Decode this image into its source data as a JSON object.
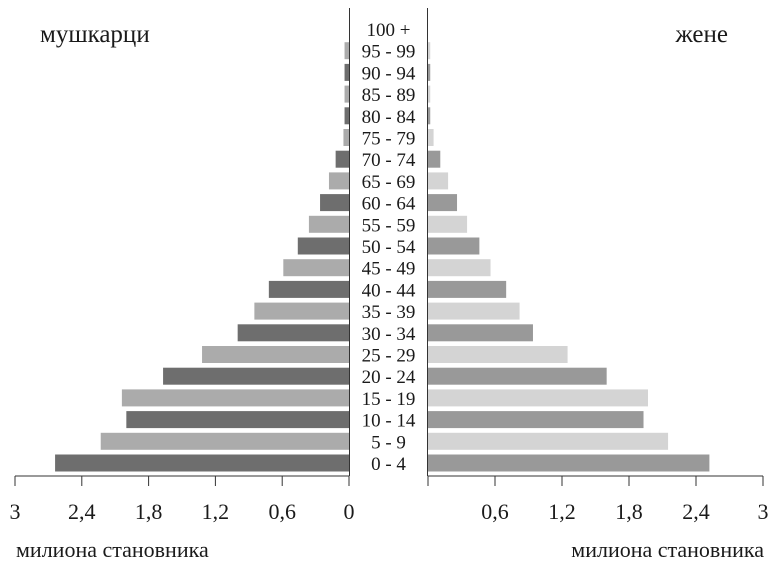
{
  "chart_data": {
    "type": "bar",
    "orientation": "horizontal-population-pyramid",
    "left_label": "мушкарци",
    "right_label": "жене",
    "xlabel_left": "милиона становника",
    "xlabel_right": "милиона становника",
    "xlim": [
      0,
      3
    ],
    "left_ticks": [
      "3",
      "2,4",
      "1,8",
      "1,2",
      "0,6",
      "0"
    ],
    "right_ticks": [
      "0,6",
      "1,2",
      "1,8",
      "2,4",
      "3"
    ],
    "categories": [
      "100 +",
      "95 - 99",
      "90 - 94",
      "85 - 89",
      "80 - 84",
      "75 - 79",
      "70 - 74",
      "65 - 69",
      "60 - 64",
      "55 - 59",
      "50 - 54",
      "45 - 49",
      "40 - 44",
      "35 - 39",
      "30 - 34",
      "25 - 29",
      "20 - 24",
      "15 - 19",
      "10 - 14",
      "5 - 9",
      "0 - 4"
    ],
    "series": [
      {
        "side": "left",
        "values": [
          0.0,
          0.04,
          0.04,
          0.04,
          0.04,
          0.05,
          0.12,
          0.18,
          0.26,
          0.36,
          0.46,
          0.59,
          0.72,
          0.85,
          1.0,
          1.32,
          1.67,
          2.04,
          2.0,
          2.23,
          2.64
        ]
      },
      {
        "side": "right",
        "values": [
          0.0,
          0.02,
          0.02,
          0.02,
          0.02,
          0.05,
          0.11,
          0.18,
          0.26,
          0.35,
          0.46,
          0.56,
          0.7,
          0.82,
          0.94,
          1.25,
          1.6,
          1.97,
          1.93,
          2.15,
          2.52
        ]
      }
    ],
    "colors": {
      "left_dark": "#6e6e6e",
      "left_light": "#ababab",
      "right_dark": "#999999",
      "right_light": "#d4d4d4"
    }
  }
}
